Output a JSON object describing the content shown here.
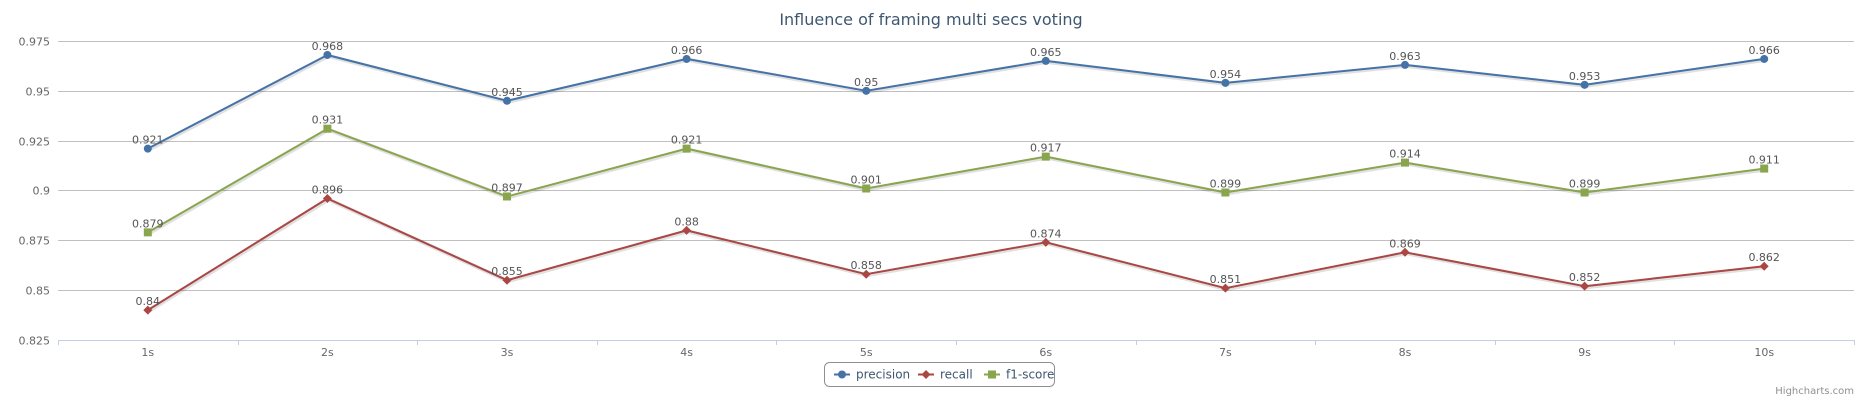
{
  "chart_data": {
    "type": "line",
    "title": "Influence of framing multi secs voting",
    "categories": [
      "1s",
      "2s",
      "3s",
      "4s",
      "5s",
      "6s",
      "7s",
      "8s",
      "9s",
      "10s"
    ],
    "ylim": [
      0.825,
      0.975
    ],
    "yticks": [
      "0.825",
      "0.85",
      "0.875",
      "0.9",
      "0.925",
      "0.95",
      "0.975"
    ],
    "grid": true,
    "legend_position": "bottom-center",
    "series": [
      {
        "name": "precision",
        "color": "#4572a7",
        "marker": "circle",
        "values": [
          0.921,
          0.968,
          0.945,
          0.966,
          0.95,
          0.965,
          0.954,
          0.963,
          0.953,
          0.966
        ]
      },
      {
        "name": "recall",
        "color": "#aa4643",
        "marker": "diamond",
        "values": [
          0.84,
          0.896,
          0.855,
          0.88,
          0.858,
          0.874,
          0.851,
          0.869,
          0.852,
          0.862
        ]
      },
      {
        "name": "f1-score",
        "color": "#89a54e",
        "marker": "square",
        "values": [
          0.879,
          0.931,
          0.897,
          0.921,
          0.901,
          0.917,
          0.899,
          0.914,
          0.899,
          0.911
        ]
      }
    ]
  },
  "credits": "Highcharts.com"
}
